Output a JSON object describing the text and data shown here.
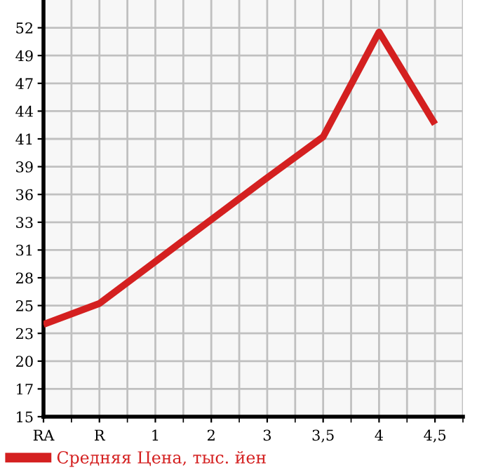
{
  "chart_data": {
    "type": "line",
    "categories": [
      "RA",
      "R",
      "1",
      "2",
      "3",
      "3,5",
      "4",
      "4,5"
    ],
    "series": [
      {
        "name": "Средняя Цена, тыс. йен",
        "color": "#d42020",
        "values": [
          23.6,
          25.6,
          29.6,
          33.6,
          37.6,
          41.5,
          51.5,
          42.7
        ]
      }
    ],
    "ylim": [
      14.8,
      54.55
    ],
    "yticks": [
      {
        "value": 14.8,
        "label": "15"
      },
      {
        "value": 17.45,
        "label": "17"
      },
      {
        "value": 20.1,
        "label": "20"
      },
      {
        "value": 22.75,
        "label": "23"
      },
      {
        "value": 25.4,
        "label": "25"
      },
      {
        "value": 28.05,
        "label": "28"
      },
      {
        "value": 30.7,
        "label": "31"
      },
      {
        "value": 33.35,
        "label": "33"
      },
      36,
      {
        "value": 38.65,
        "label": "39"
      },
      {
        "value": 41.3,
        "label": "41"
      },
      {
        "value": 43.95,
        "label": "44"
      },
      {
        "value": 46.6,
        "label": "47"
      },
      {
        "value": 49.25,
        "label": "49"
      },
      {
        "value": 51.9,
        "label": "52"
      }
    ],
    "grid": true,
    "legend": "bottom",
    "marker": "none",
    "line_style": "solid"
  }
}
